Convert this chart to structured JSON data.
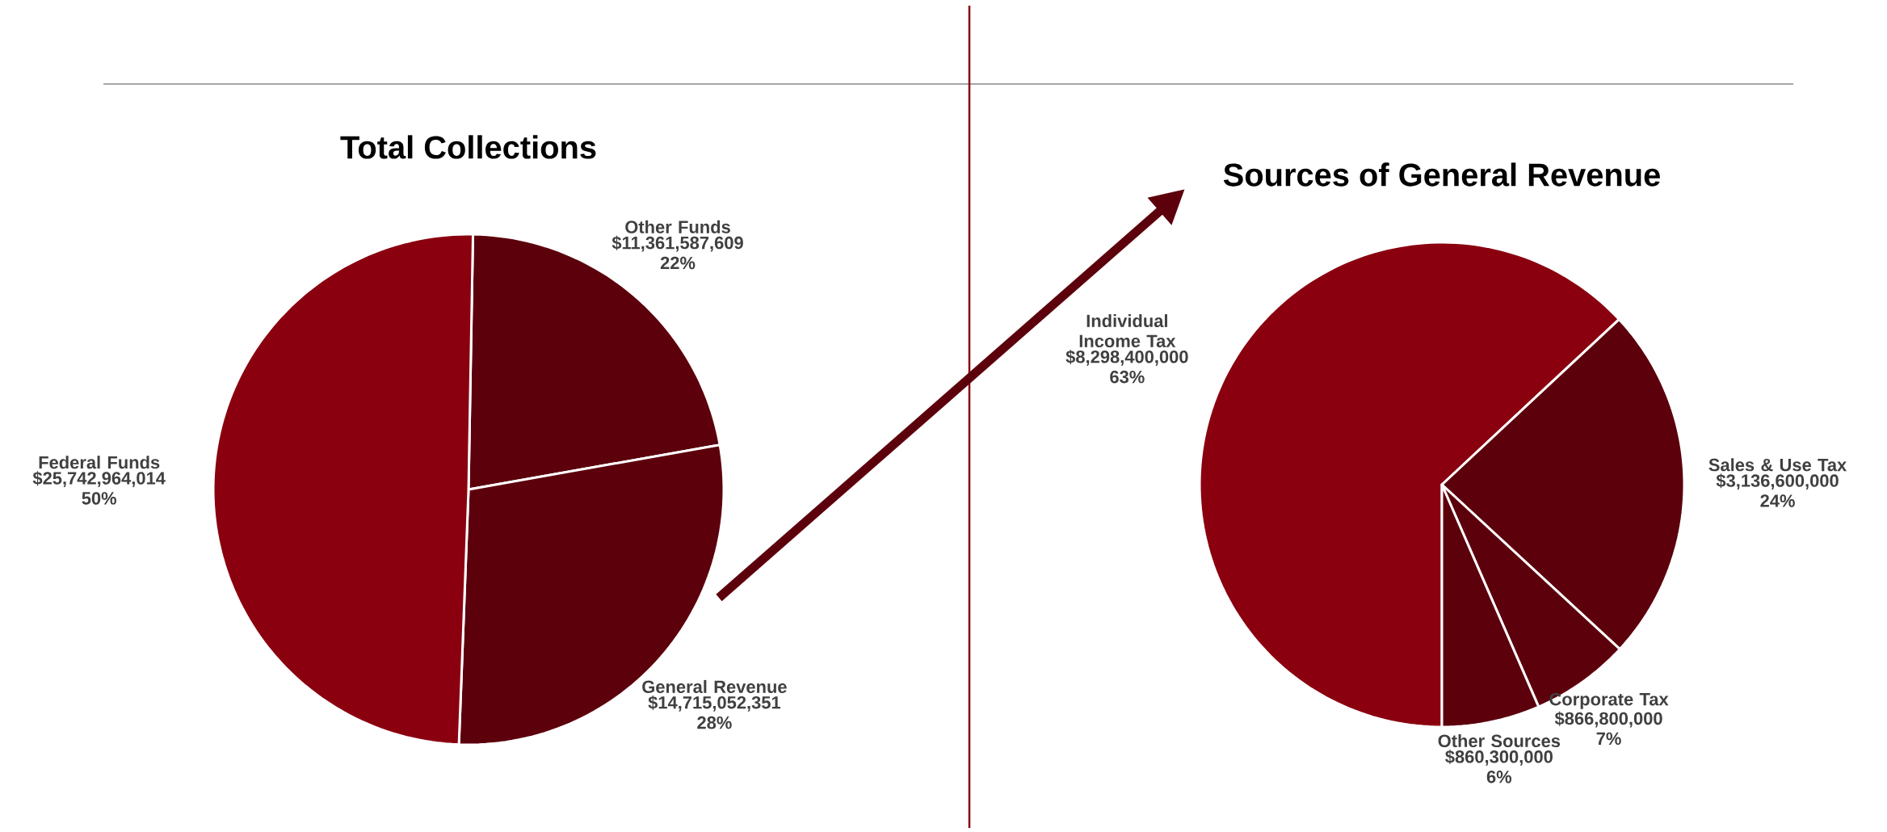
{
  "chart_data": [
    {
      "type": "pie",
      "title": "Total Collections",
      "categories": [
        "Other Funds",
        "General Revenue",
        "Federal Funds"
      ],
      "values": [
        11361587609,
        14715052351,
        25742964014
      ],
      "colors": [
        "#5c000c",
        "#5c000c",
        "#8a000f"
      ],
      "value_labels": [
        "$11,361,587,609 22%",
        "$14,715,052,351 28%",
        "$25,742,964,014 50%"
      ]
    },
    {
      "type": "pie",
      "title": "Sources of General Revenue",
      "categories": [
        "Individual Income Tax",
        "Sales & Use Tax",
        "Corporate Tax",
        "Other Sources"
      ],
      "values": [
        8298400000,
        3136600000,
        866800000,
        860300000
      ],
      "colors": [
        "#8a000f",
        "#5c000c",
        "#5c000c",
        "#5c000c"
      ],
      "value_labels": [
        "$8,298,400,000 63%",
        "$3,136,600,000 24%",
        "$866,800,000 7%",
        "$860,300,000 6%"
      ]
    }
  ]
}
